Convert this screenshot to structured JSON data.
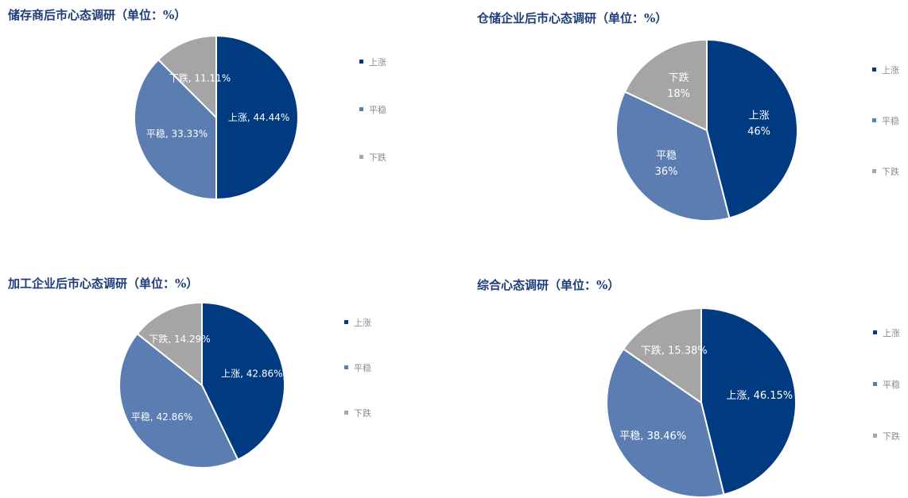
{
  "chart_data": [
    {
      "type": "pie",
      "title": "储存商后市心态调研（单位：%）",
      "categories": [
        "上涨",
        "平稳",
        "下跌"
      ],
      "values": [
        44.44,
        33.33,
        11.11
      ],
      "data_labels": [
        "上涨, 44.44%",
        "平稳, 33.33%",
        "下跌, 11.11%"
      ],
      "legend": [
        "上涨",
        "平稳",
        "下跌"
      ],
      "legend_position": "right"
    },
    {
      "type": "pie",
      "title": "仓储企业后市心态调研（单位：%）",
      "categories": [
        "上涨",
        "平稳",
        "下跌"
      ],
      "values": [
        46,
        36,
        18
      ],
      "data_labels": [
        [
          "上涨",
          "46%"
        ],
        [
          "平稳",
          "36%"
        ],
        [
          "下跌",
          "18%"
        ]
      ],
      "legend": [
        "上涨",
        "平稳",
        "下跌"
      ],
      "legend_position": "right"
    },
    {
      "type": "pie",
      "title": "加工企业后市心态调研（单位：%）",
      "categories": [
        "上涨",
        "平稳",
        "下跌"
      ],
      "values": [
        42.86,
        42.86,
        14.29
      ],
      "data_labels": [
        "上涨, 42.86%",
        "平稳, 42.86%",
        "下跌, 14.29%"
      ],
      "legend": [
        "上涨",
        "平稳",
        "下跌"
      ],
      "legend_position": "right"
    },
    {
      "type": "pie",
      "title": "综合心态调研（单位：%）",
      "categories": [
        "上涨",
        "平稳",
        "下跌"
      ],
      "values": [
        46.15,
        38.46,
        15.38
      ],
      "data_labels": [
        "上涨, 46.15%",
        "平稳, 38.46%",
        "下跌, 15.38%"
      ],
      "legend": [
        "上涨",
        "平稳",
        "下跌"
      ],
      "legend_position": "right"
    }
  ],
  "colors": {
    "上涨": "#003a80",
    "平稳": "#5b7db1",
    "下跌": "#a5a5a5"
  }
}
